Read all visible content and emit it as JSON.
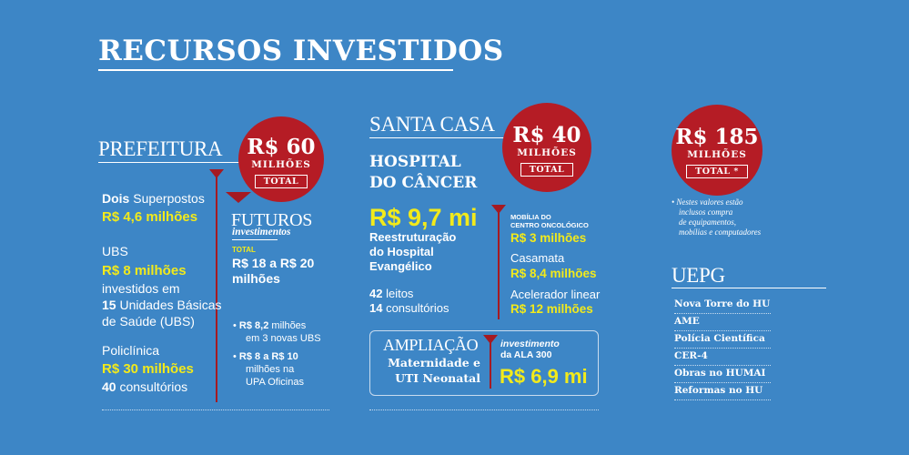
{
  "title": "RECURSOS INVESTIDOS",
  "prefeitura": {
    "heading": "PREFEITURA",
    "badge": {
      "amount": "R$ 60",
      "unit": "MILHÕES",
      "total": "TOTAL"
    },
    "item1": {
      "lead_bold": "Dois",
      "lead_rest": " Superpostos",
      "value": "R$ 4,6 milhões"
    },
    "item2": {
      "label": "UBS",
      "value": "R$ 8 milhões",
      "line1": "investidos em",
      "line2_bold": "15",
      "line2_rest": " Unidades Básicas",
      "line3": "de Saúde (UBS)"
    },
    "item3": {
      "label": "Policlínica",
      "value": "R$ 30 milhões",
      "extra_bold": "40",
      "extra_rest": " consultórios"
    },
    "futuros": {
      "heading": "FUTUROS",
      "subheading": "investimentos",
      "total_label": "TOTAL",
      "total_value": "R$ 18 a R$ 20 milhões",
      "bullet1": {
        "bold": "R$ 8,2",
        "rest_line1": " milhões",
        "line2": "em 3 novas UBS"
      },
      "bullet2": {
        "bold": "R$ 8 a R$ 10",
        "line2": "milhões na",
        "line3": "UPA Oficinas"
      }
    }
  },
  "santa_casa": {
    "heading": "SANTA CASA",
    "badge": {
      "amount": "R$ 40",
      "unit": "MILHÕES",
      "total": "TOTAL"
    },
    "hospital_title_1": "HOSPITAL",
    "hospital_title_2": "DO CÂNCER",
    "big_value": "R$ 9,7 mi",
    "desc_1": "Reestruturação",
    "desc_2": "do Hospital",
    "desc_3": "Evangélico",
    "leitos_bold": "42",
    "leitos_rest": " leitos",
    "consult_bold": "14",
    "consult_rest": " consultórios",
    "mobilia_label_1": "MOBÍLIA DO",
    "mobilia_label_2": "CENTRO ONCOLÓGICO",
    "mobilia_value": "R$ 3 milhões",
    "casamata_label": "Casamata",
    "casamata_value": "R$ 8,4 milhões",
    "acelerador_label": "Acelerador linear",
    "acelerador_value": "R$ 12 milhões",
    "ampliacao": {
      "heading": "AMPLIAÇÃO",
      "line1": "Maternidade e",
      "line2": "UTI Neonatal",
      "inv_label_1": "investimento",
      "inv_label_2": "da ALA 300",
      "value": "R$ 6,9 mi"
    }
  },
  "total_all": {
    "badge": {
      "amount": "R$ 185",
      "unit": "MILHÕES",
      "total": "TOTAL *"
    },
    "note_1": "• Nestes valores estão",
    "note_2": "inclusos compra",
    "note_3": "de equipamentos,",
    "note_4": "mobílias e computadores"
  },
  "uepg": {
    "heading": "UEPG",
    "items": [
      "Nova Torre do HU",
      "AME",
      "Polícia Científica",
      "CER-4",
      "Obras no HUMAI",
      "Reformas no HU"
    ]
  },
  "colors": {
    "background": "#3d86c6",
    "badge_red": "#b51c25",
    "highlight_yellow": "#f2ea1b"
  }
}
